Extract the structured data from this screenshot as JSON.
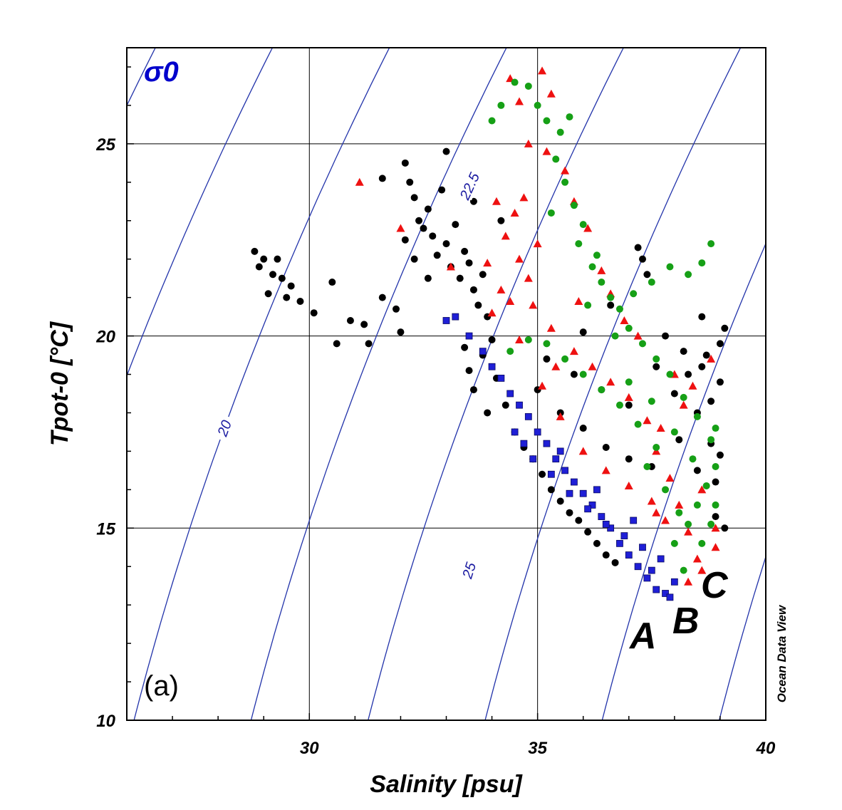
{
  "chart_data": {
    "type": "scatter",
    "title": "",
    "xlabel": "Salinity [psu]",
    "ylabel": "Tpot-0 [°C]",
    "xlim": [
      26,
      40
    ],
    "ylim": [
      10,
      27.5
    ],
    "xticks": [
      30,
      35,
      40
    ],
    "yticks": [
      10,
      15,
      20,
      25
    ],
    "grid": true,
    "isopycnal_label": "σ0",
    "panel_label": "(a)",
    "credit": "Ocean Data View",
    "contours": {
      "label_texts": [
        "20",
        "22.5",
        "25"
      ],
      "sigma_values": [
        16,
        18,
        20,
        22,
        24,
        26,
        28,
        30
      ]
    },
    "colors": {
      "contour": "#2233aa",
      "black_series": "#000000",
      "blue_series": "#1f1fd6",
      "red_series": "#ee1111",
      "green_series": "#16a016"
    },
    "group_labels": [
      "A",
      "B",
      "C"
    ],
    "series": [
      {
        "color": "black",
        "marker": "circle",
        "points": [
          [
            28.8,
            22.2
          ],
          [
            28.9,
            21.8
          ],
          [
            29.0,
            22.0
          ],
          [
            29.2,
            21.6
          ],
          [
            29.3,
            22.0
          ],
          [
            29.4,
            21.5
          ],
          [
            29.5,
            21.0
          ],
          [
            29.6,
            21.3
          ],
          [
            29.1,
            21.1
          ],
          [
            29.8,
            20.9
          ],
          [
            30.1,
            20.6
          ],
          [
            30.5,
            21.4
          ],
          [
            30.6,
            19.8
          ],
          [
            30.9,
            20.4
          ],
          [
            31.2,
            20.3
          ],
          [
            31.3,
            19.8
          ],
          [
            31.6,
            21.0
          ],
          [
            31.9,
            20.7
          ],
          [
            32.0,
            20.1
          ],
          [
            32.1,
            24.5
          ],
          [
            32.2,
            24.0
          ],
          [
            32.3,
            23.6
          ],
          [
            32.4,
            23.0
          ],
          [
            32.1,
            22.5
          ],
          [
            32.3,
            22.0
          ],
          [
            32.5,
            22.8
          ],
          [
            32.6,
            23.3
          ],
          [
            32.7,
            22.6
          ],
          [
            32.8,
            22.1
          ],
          [
            32.9,
            23.8
          ],
          [
            33.0,
            22.4
          ],
          [
            33.1,
            21.8
          ],
          [
            33.2,
            22.9
          ],
          [
            33.3,
            21.5
          ],
          [
            33.4,
            22.2
          ],
          [
            33.5,
            21.9
          ],
          [
            33.6,
            21.2
          ],
          [
            33.7,
            20.8
          ],
          [
            33.8,
            21.6
          ],
          [
            33.9,
            20.5
          ],
          [
            33.4,
            19.7
          ],
          [
            33.5,
            19.1
          ],
          [
            33.6,
            18.6
          ],
          [
            33.8,
            19.5
          ],
          [
            34.0,
            19.9
          ],
          [
            34.1,
            18.9
          ],
          [
            34.3,
            18.2
          ],
          [
            33.9,
            18.0
          ],
          [
            34.5,
            17.5
          ],
          [
            34.7,
            17.1
          ],
          [
            34.9,
            16.8
          ],
          [
            35.1,
            16.4
          ],
          [
            35.3,
            16.0
          ],
          [
            35.5,
            15.7
          ],
          [
            35.7,
            15.4
          ],
          [
            35.9,
            15.2
          ],
          [
            36.1,
            14.9
          ],
          [
            36.3,
            14.6
          ],
          [
            36.5,
            14.3
          ],
          [
            36.7,
            14.1
          ],
          [
            35.0,
            18.6
          ],
          [
            35.5,
            18.0
          ],
          [
            36.0,
            17.6
          ],
          [
            36.5,
            17.1
          ],
          [
            37.0,
            16.8
          ],
          [
            37.5,
            16.6
          ],
          [
            35.2,
            19.4
          ],
          [
            35.8,
            19.0
          ],
          [
            36.4,
            18.6
          ],
          [
            37.0,
            18.2
          ],
          [
            37.6,
            19.2
          ],
          [
            38.0,
            18.5
          ],
          [
            38.3,
            19.0
          ],
          [
            38.5,
            18.0
          ],
          [
            38.7,
            19.5
          ],
          [
            38.8,
            17.2
          ],
          [
            38.9,
            16.2
          ],
          [
            39.0,
            18.8
          ],
          [
            39.1,
            20.2
          ],
          [
            38.6,
            20.5
          ],
          [
            38.9,
            15.3
          ],
          [
            39.1,
            15.0
          ],
          [
            39.0,
            16.9
          ],
          [
            38.5,
            16.5
          ],
          [
            38.1,
            17.3
          ],
          [
            37.3,
            22.0
          ],
          [
            37.2,
            22.3
          ],
          [
            37.4,
            21.6
          ],
          [
            36.0,
            20.1
          ],
          [
            36.6,
            20.8
          ],
          [
            37.8,
            20.0
          ],
          [
            38.2,
            19.6
          ],
          [
            38.6,
            19.2
          ],
          [
            39.0,
            19.8
          ],
          [
            38.8,
            18.3
          ],
          [
            33.0,
            24.8
          ],
          [
            33.6,
            23.5
          ],
          [
            34.2,
            23.0
          ],
          [
            31.6,
            24.1
          ],
          [
            32.6,
            21.5
          ]
        ]
      },
      {
        "color": "blue",
        "marker": "square",
        "points": [
          [
            33.0,
            20.4
          ],
          [
            33.2,
            20.5
          ],
          [
            33.5,
            20.0
          ],
          [
            33.8,
            19.6
          ],
          [
            34.0,
            19.2
          ],
          [
            34.2,
            18.9
          ],
          [
            34.4,
            18.5
          ],
          [
            34.6,
            18.2
          ],
          [
            34.8,
            17.9
          ],
          [
            35.0,
            17.5
          ],
          [
            35.2,
            17.2
          ],
          [
            35.4,
            16.8
          ],
          [
            35.6,
            16.5
          ],
          [
            35.8,
            16.2
          ],
          [
            36.0,
            15.9
          ],
          [
            36.2,
            15.6
          ],
          [
            36.4,
            15.3
          ],
          [
            36.6,
            15.0
          ],
          [
            36.8,
            14.6
          ],
          [
            37.0,
            14.3
          ],
          [
            37.2,
            14.0
          ],
          [
            37.4,
            13.7
          ],
          [
            37.6,
            13.4
          ],
          [
            37.8,
            13.3
          ],
          [
            37.9,
            13.2
          ],
          [
            34.9,
            16.8
          ],
          [
            35.3,
            16.4
          ],
          [
            35.7,
            15.9
          ],
          [
            36.1,
            15.5
          ],
          [
            36.5,
            15.1
          ],
          [
            36.9,
            14.8
          ],
          [
            37.3,
            14.5
          ],
          [
            37.7,
            14.2
          ],
          [
            38.0,
            13.6
          ],
          [
            34.5,
            17.5
          ],
          [
            34.7,
            17.2
          ],
          [
            35.5,
            17.0
          ],
          [
            36.3,
            16.0
          ],
          [
            37.1,
            15.2
          ],
          [
            37.5,
            13.9
          ]
        ]
      },
      {
        "color": "red",
        "marker": "triangle",
        "points": [
          [
            31.1,
            24.0
          ],
          [
            32.0,
            22.8
          ],
          [
            33.1,
            21.8
          ],
          [
            34.4,
            26.7
          ],
          [
            34.6,
            26.1
          ],
          [
            35.1,
            26.9
          ],
          [
            35.3,
            26.3
          ],
          [
            34.8,
            25.0
          ],
          [
            35.2,
            24.8
          ],
          [
            35.6,
            24.3
          ],
          [
            34.5,
            23.2
          ],
          [
            34.3,
            22.6
          ],
          [
            34.6,
            22.0
          ],
          [
            34.8,
            21.5
          ],
          [
            34.2,
            21.2
          ],
          [
            34.0,
            20.6
          ],
          [
            33.9,
            21.9
          ],
          [
            34.4,
            20.9
          ],
          [
            34.9,
            20.8
          ],
          [
            35.3,
            20.2
          ],
          [
            35.8,
            19.6
          ],
          [
            36.2,
            19.2
          ],
          [
            36.6,
            18.8
          ],
          [
            37.0,
            18.4
          ],
          [
            37.4,
            17.8
          ],
          [
            37.6,
            17.0
          ],
          [
            37.9,
            16.3
          ],
          [
            38.1,
            15.6
          ],
          [
            38.3,
            14.9
          ],
          [
            38.5,
            14.2
          ],
          [
            38.3,
            13.6
          ],
          [
            38.6,
            13.9
          ],
          [
            38.9,
            14.5
          ],
          [
            37.8,
            15.2
          ],
          [
            37.5,
            15.7
          ],
          [
            37.0,
            16.1
          ],
          [
            36.5,
            16.5
          ],
          [
            36.0,
            17.0
          ],
          [
            35.5,
            17.9
          ],
          [
            35.1,
            18.7
          ],
          [
            35.8,
            23.5
          ],
          [
            36.1,
            22.8
          ],
          [
            36.4,
            21.7
          ],
          [
            36.6,
            21.1
          ],
          [
            37.2,
            20.0
          ],
          [
            38.0,
            19.0
          ],
          [
            38.4,
            18.7
          ],
          [
            38.8,
            19.4
          ],
          [
            38.2,
            18.2
          ],
          [
            37.6,
            15.4
          ],
          [
            34.1,
            23.5
          ],
          [
            34.7,
            23.6
          ],
          [
            35.0,
            22.4
          ],
          [
            35.9,
            20.9
          ],
          [
            36.9,
            20.4
          ],
          [
            37.7,
            17.6
          ],
          [
            38.6,
            16.0
          ],
          [
            38.9,
            15.0
          ],
          [
            35.4,
            19.2
          ],
          [
            34.6,
            19.9
          ]
        ]
      },
      {
        "color": "green",
        "marker": "circle",
        "points": [
          [
            34.0,
            25.6
          ],
          [
            34.2,
            26.0
          ],
          [
            34.5,
            26.6
          ],
          [
            34.8,
            26.5
          ],
          [
            35.0,
            26.0
          ],
          [
            35.2,
            25.6
          ],
          [
            35.5,
            25.3
          ],
          [
            35.7,
            25.7
          ],
          [
            35.4,
            24.6
          ],
          [
            35.6,
            24.0
          ],
          [
            35.8,
            23.4
          ],
          [
            36.0,
            22.9
          ],
          [
            35.9,
            22.4
          ],
          [
            36.2,
            21.8
          ],
          [
            36.4,
            21.4
          ],
          [
            36.6,
            21.0
          ],
          [
            36.8,
            20.7
          ],
          [
            37.0,
            20.2
          ],
          [
            37.3,
            19.8
          ],
          [
            37.6,
            19.4
          ],
          [
            37.9,
            19.0
          ],
          [
            38.2,
            18.4
          ],
          [
            38.5,
            17.9
          ],
          [
            38.8,
            17.3
          ],
          [
            38.9,
            16.6
          ],
          [
            38.7,
            16.1
          ],
          [
            38.5,
            15.6
          ],
          [
            38.3,
            15.1
          ],
          [
            38.0,
            14.6
          ],
          [
            38.2,
            13.9
          ],
          [
            38.6,
            14.6
          ],
          [
            38.8,
            15.1
          ],
          [
            38.9,
            15.6
          ],
          [
            37.6,
            17.1
          ],
          [
            37.2,
            17.7
          ],
          [
            36.8,
            18.2
          ],
          [
            36.4,
            18.6
          ],
          [
            36.0,
            19.0
          ],
          [
            35.6,
            19.4
          ],
          [
            35.2,
            19.8
          ],
          [
            34.8,
            19.9
          ],
          [
            34.4,
            19.6
          ],
          [
            37.4,
            16.6
          ],
          [
            37.8,
            16.0
          ],
          [
            38.1,
            15.4
          ],
          [
            37.5,
            21.4
          ],
          [
            37.9,
            21.8
          ],
          [
            38.3,
            21.6
          ],
          [
            38.6,
            21.9
          ],
          [
            38.8,
            22.4
          ],
          [
            37.1,
            21.1
          ],
          [
            36.7,
            20.0
          ],
          [
            37.0,
            18.8
          ],
          [
            37.5,
            18.3
          ],
          [
            38.0,
            17.5
          ],
          [
            38.4,
            16.8
          ],
          [
            38.9,
            17.6
          ],
          [
            36.3,
            22.1
          ],
          [
            36.1,
            20.8
          ],
          [
            35.3,
            23.2
          ]
        ]
      }
    ]
  }
}
